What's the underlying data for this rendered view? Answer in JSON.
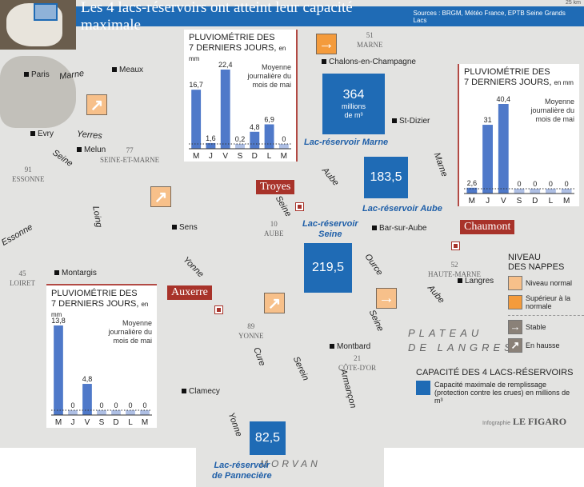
{
  "header": {
    "title": "Les 4 lacs-réservoirs ont atteint leur capacité maximale",
    "sources": "Sources : BRGM, Météo France, EPTB Seine Grands Lacs",
    "scale": "25 km"
  },
  "cities": [
    "Paris",
    "Meaux",
    "Evry",
    "Melun",
    "Sens",
    "Montargis",
    "Chalons-en-Champagne",
    "St-Dizier",
    "Bar-sur-Aube",
    "Langres",
    "Montbard",
    "Clamecy"
  ],
  "departments": [
    "77\nSEINE-ET-MARNE",
    "91\nESSONNE",
    "45\nLOIRET",
    "10\nAUBE",
    "89\nYONNE",
    "21\nCÔTE-D'OR",
    "51\nMARNE",
    "52\nHAUTE-MARNE"
  ],
  "rivers": [
    "Marne",
    "Yerres",
    "Seine",
    "Loing",
    "Essonne",
    "Yonne",
    "Cure",
    "Serein",
    "Armançon",
    "Yonne",
    "Marne",
    "Aube",
    "Seine",
    "Ource",
    "Seine",
    "Aube"
  ],
  "regions": [
    "PLATEAU\nDE LANGRES",
    "MORVAN"
  ],
  "stations": [
    "Troyes",
    "Auxerre",
    "Chaumont"
  ],
  "reservoirs": [
    {
      "name": "Lac-réservoir Marne",
      "value": "364",
      "unit": "millions\nde m³"
    },
    {
      "name": "Lac-réservoir Aube",
      "value": "183,5"
    },
    {
      "name": "Lac-réservoir\nSeine",
      "value": "219,5"
    },
    {
      "name": "Lac-réservoir\nde Pannecière",
      "value": "82,5"
    }
  ],
  "groundwater_arrows": [
    {
      "trend": "en hausse",
      "level": "normal"
    },
    {
      "trend": "en hausse",
      "level": "normal"
    },
    {
      "trend": "en hausse",
      "level": "normal"
    },
    {
      "trend": "stable",
      "level": "supérieur à la normale"
    },
    {
      "trend": "stable",
      "level": "normal"
    }
  ],
  "charts": [
    {
      "station": "Troyes",
      "title": "PLUVIOMÉTRIE DES\n7 DERNIERS JOURS,",
      "unit": "en mm",
      "legend": "Moyenne journalière du mois de mai",
      "days": [
        "M",
        "J",
        "V",
        "S",
        "D",
        "L",
        "M"
      ],
      "values": [
        16.7,
        1.6,
        22.4,
        0.2,
        4.8,
        6.9,
        0
      ],
      "labels": [
        "16,7",
        "1,6",
        "22,4",
        "0,2",
        "4,8",
        "6,9",
        "0"
      ]
    },
    {
      "station": "Chaumont",
      "title": "PLUVIOMÉTRIE DES\n7 DERNIERS JOURS,",
      "unit": "en mm",
      "legend": "Moyenne journalière du mois de mai",
      "days": [
        "M",
        "J",
        "V",
        "S",
        "D",
        "L",
        "M"
      ],
      "values": [
        2.6,
        31,
        40.4,
        0,
        0,
        0,
        0
      ],
      "labels": [
        "2,6",
        "31",
        "40,4",
        "0",
        "0",
        "0",
        "0"
      ]
    },
    {
      "station": "Auxerre",
      "title": "PLUVIOMÉTRIE DES\n7 DERNIERS JOURS,",
      "unit": "en mm",
      "legend": "Moyenne journalière du mois de mai",
      "days": [
        "M",
        "J",
        "V",
        "S",
        "D",
        "L",
        "M"
      ],
      "values": [
        13.8,
        0,
        4.8,
        0,
        0,
        0,
        0
      ],
      "labels": [
        "13,8",
        "0",
        "4,8",
        "0",
        "0",
        "0",
        "0"
      ]
    }
  ],
  "legend": {
    "title": "NIVEAU\nDES NAPPES",
    "normal": "Niveau normal",
    "above": "Supérieur à la normale",
    "stable": "Stable",
    "rising": "En hausse",
    "color_normal": "#f7c08a",
    "color_above": "#f49b3c"
  },
  "capacity": {
    "title": "CAPACITÉ DES 4 LACS-RÉSERVOIRS",
    "desc": "Capacité maximale de remplissage (protection contre les crues) en millions de m³",
    "color": "#1f6bb5"
  },
  "credit": {
    "prefix": "Infographie",
    "brand": "LE FIGARO"
  }
}
